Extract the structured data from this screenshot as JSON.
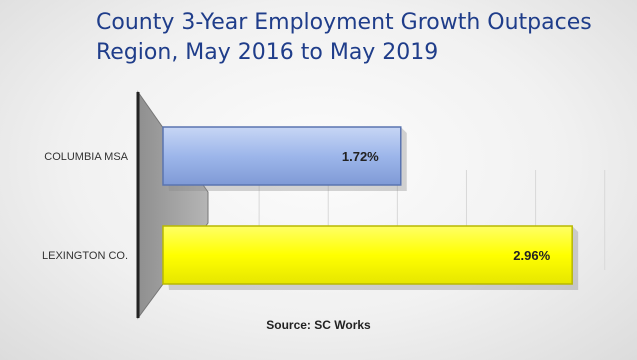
{
  "chart_data": {
    "type": "bar",
    "orientation": "horizontal",
    "title_lines": [
      "County 3-Year Employment Growth Outpaces",
      "Region, May 2016 to May 2019"
    ],
    "categories": [
      "COLUMBIA MSA",
      "LEXINGTON CO."
    ],
    "values": [
      1.72,
      2.96
    ],
    "value_labels": [
      "1.72%",
      "2.96%"
    ],
    "bar_colors": [
      "#9db6ea",
      "#ffff00"
    ],
    "xlim": [
      0,
      3.4
    ],
    "grid": true,
    "legend": "none",
    "source": "Source: SC Works"
  }
}
